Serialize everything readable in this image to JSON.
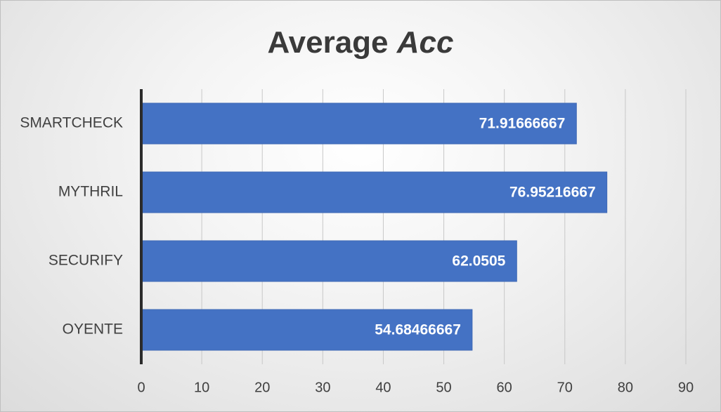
{
  "chart_data": {
    "type": "bar",
    "orientation": "horizontal",
    "title": "Average",
    "title_italic": "Acc",
    "categories": [
      "SMARTCHECK",
      "MYTHRIL",
      "SECURIFY",
      "OYENTE"
    ],
    "values": [
      71.91666667,
      76.95216667,
      62.0505,
      54.68466667
    ],
    "data_labels": [
      "71.91666667",
      "76.95216667",
      "62.0505",
      "54.68466667"
    ],
    "xlim": [
      0,
      90
    ],
    "xticks": [
      "0",
      "10",
      "20",
      "30",
      "40",
      "50",
      "60",
      "70",
      "80",
      "90"
    ],
    "grid": true,
    "legend": "none",
    "colors": {
      "bar": "#4472c4",
      "bar_border": "#3f69b5",
      "grid": "#c8c8c8",
      "axis": "#2b2b2b",
      "title": "#3a3a3a",
      "text": "#404040",
      "data_label": "#ffffff"
    }
  }
}
